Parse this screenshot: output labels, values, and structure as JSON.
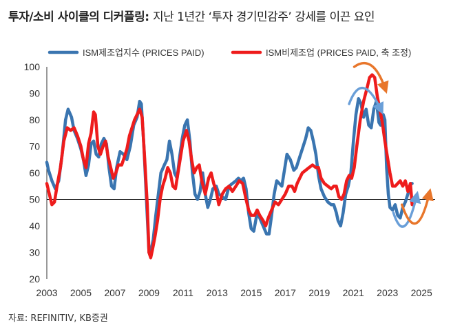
{
  "title_main": "투자/소비 사이클의 디커플링:",
  "title_sub": "지난 1년간 ‘투자 경기민감주’ 강세를 이끈 요인",
  "source": "자료: REFINITIV, KB증권",
  "colors": {
    "blue": "#3a75b0",
    "red": "#ee1c1c",
    "arrow_blue": "#6a9fd8",
    "arrow_orange": "#e8762b",
    "axis": "#333333"
  },
  "chart_data": {
    "type": "line",
    "title": "",
    "xlabel": "",
    "ylabel": "",
    "xlim": [
      2003,
      2025.8
    ],
    "ylim": [
      20,
      100
    ],
    "yticks": [
      20,
      30,
      40,
      50,
      60,
      70,
      80,
      90,
      100
    ],
    "xticks": [
      2003,
      2005,
      2007,
      2009,
      2011,
      2013,
      2015,
      2017,
      2019,
      2021,
      2023,
      2025
    ],
    "reference_line": 50,
    "legend_position": "top-left",
    "series": [
      {
        "name": "ISM제조업지수 (PRICES PAID)",
        "color": "blue",
        "points": [
          [
            2003.0,
            64
          ],
          [
            2003.1,
            61
          ],
          [
            2003.3,
            57
          ],
          [
            2003.5,
            54
          ],
          [
            2003.7,
            57
          ],
          [
            2003.9,
            67
          ],
          [
            2004.1,
            80
          ],
          [
            2004.25,
            84
          ],
          [
            2004.45,
            81
          ],
          [
            2004.6,
            76
          ],
          [
            2004.8,
            73
          ],
          [
            2005.0,
            69
          ],
          [
            2005.15,
            65
          ],
          [
            2005.3,
            59
          ],
          [
            2005.45,
            63
          ],
          [
            2005.6,
            71
          ],
          [
            2005.75,
            72
          ],
          [
            2005.9,
            67
          ],
          [
            2006.05,
            66
          ],
          [
            2006.2,
            71
          ],
          [
            2006.35,
            73
          ],
          [
            2006.5,
            71
          ],
          [
            2006.65,
            62
          ],
          [
            2006.8,
            55
          ],
          [
            2006.95,
            54
          ],
          [
            2007.1,
            62
          ],
          [
            2007.3,
            68
          ],
          [
            2007.5,
            67
          ],
          [
            2007.7,
            65
          ],
          [
            2007.9,
            70
          ],
          [
            2008.1,
            78
          ],
          [
            2008.3,
            81
          ],
          [
            2008.45,
            87
          ],
          [
            2008.55,
            86
          ],
          [
            2008.7,
            70
          ],
          [
            2008.85,
            50
          ],
          [
            2009.0,
            30
          ],
          [
            2009.1,
            30
          ],
          [
            2009.25,
            35
          ],
          [
            2009.4,
            44
          ],
          [
            2009.55,
            52
          ],
          [
            2009.7,
            60
          ],
          [
            2009.9,
            63
          ],
          [
            2010.05,
            65
          ],
          [
            2010.2,
            72
          ],
          [
            2010.35,
            67
          ],
          [
            2010.5,
            60
          ],
          [
            2010.65,
            58
          ],
          [
            2010.8,
            66
          ],
          [
            2010.95,
            73
          ],
          [
            2011.1,
            78
          ],
          [
            2011.25,
            80
          ],
          [
            2011.4,
            72
          ],
          [
            2011.55,
            60
          ],
          [
            2011.7,
            52
          ],
          [
            2011.85,
            50
          ],
          [
            2012.0,
            53
          ],
          [
            2012.15,
            60
          ],
          [
            2012.3,
            52
          ],
          [
            2012.45,
            47
          ],
          [
            2012.6,
            50
          ],
          [
            2012.75,
            54
          ],
          [
            2012.95,
            55
          ],
          [
            2013.1,
            52
          ],
          [
            2013.3,
            51
          ],
          [
            2013.5,
            50
          ],
          [
            2013.7,
            55
          ],
          [
            2013.9,
            56
          ],
          [
            2014.1,
            57
          ],
          [
            2014.25,
            58
          ],
          [
            2014.4,
            57
          ],
          [
            2014.55,
            58
          ],
          [
            2014.7,
            54
          ],
          [
            2014.85,
            45
          ],
          [
            2015.0,
            39
          ],
          [
            2015.15,
            38
          ],
          [
            2015.35,
            45
          ],
          [
            2015.5,
            43
          ],
          [
            2015.7,
            40
          ],
          [
            2015.9,
            37
          ],
          [
            2016.05,
            37
          ],
          [
            2016.2,
            44
          ],
          [
            2016.35,
            52
          ],
          [
            2016.5,
            57
          ],
          [
            2016.65,
            56
          ],
          [
            2016.8,
            55
          ],
          [
            2016.95,
            61
          ],
          [
            2017.1,
            67
          ],
          [
            2017.3,
            65
          ],
          [
            2017.5,
            61
          ],
          [
            2017.65,
            62
          ],
          [
            2017.85,
            66
          ],
          [
            2018.0,
            69
          ],
          [
            2018.2,
            73
          ],
          [
            2018.35,
            77
          ],
          [
            2018.5,
            76
          ],
          [
            2018.65,
            72
          ],
          [
            2018.8,
            67
          ],
          [
            2018.95,
            59
          ],
          [
            2019.1,
            54
          ],
          [
            2019.3,
            51
          ],
          [
            2019.5,
            49
          ],
          [
            2019.7,
            48
          ],
          [
            2019.85,
            48
          ],
          [
            2020.0,
            45
          ],
          [
            2020.1,
            42
          ],
          [
            2020.25,
            40
          ],
          [
            2020.4,
            45
          ],
          [
            2020.55,
            52
          ],
          [
            2020.7,
            55
          ],
          [
            2020.85,
            60
          ],
          [
            2021.0,
            72
          ],
          [
            2021.15,
            82
          ],
          [
            2021.3,
            88
          ],
          [
            2021.45,
            86
          ],
          [
            2021.6,
            81
          ],
          [
            2021.75,
            84
          ],
          [
            2021.9,
            78
          ],
          [
            2022.05,
            77
          ],
          [
            2022.2,
            84
          ],
          [
            2022.35,
            87
          ],
          [
            2022.5,
            79
          ],
          [
            2022.6,
            78
          ],
          [
            2022.75,
            82
          ],
          [
            2022.85,
            80
          ],
          [
            2022.95,
            62
          ],
          [
            2023.05,
            52
          ],
          [
            2023.15,
            47
          ],
          [
            2023.3,
            46
          ],
          [
            2023.45,
            48
          ],
          [
            2023.6,
            44
          ],
          [
            2023.75,
            43
          ],
          [
            2023.9,
            47
          ],
          [
            2024.05,
            49
          ],
          [
            2024.2,
            52
          ],
          [
            2024.35,
            56
          ],
          [
            2024.45,
            56
          ]
        ]
      },
      {
        "name": "ISM비제조업 (PRICES PAID, 축 조정)",
        "color": "red",
        "points": [
          [
            2003.0,
            56
          ],
          [
            2003.15,
            52
          ],
          [
            2003.3,
            48
          ],
          [
            2003.45,
            49
          ],
          [
            2003.6,
            55
          ],
          [
            2003.8,
            62
          ],
          [
            2004.0,
            72
          ],
          [
            2004.2,
            77
          ],
          [
            2004.4,
            76
          ],
          [
            2004.6,
            77
          ],
          [
            2004.8,
            74
          ],
          [
            2005.0,
            70
          ],
          [
            2005.15,
            65
          ],
          [
            2005.3,
            62
          ],
          [
            2005.45,
            71
          ],
          [
            2005.6,
            75
          ],
          [
            2005.75,
            83
          ],
          [
            2005.85,
            82
          ],
          [
            2006.0,
            70
          ],
          [
            2006.15,
            67
          ],
          [
            2006.3,
            70
          ],
          [
            2006.45,
            72
          ],
          [
            2006.6,
            66
          ],
          [
            2006.75,
            62
          ],
          [
            2006.9,
            58
          ],
          [
            2007.05,
            60
          ],
          [
            2007.2,
            63
          ],
          [
            2007.4,
            63
          ],
          [
            2007.55,
            66
          ],
          [
            2007.7,
            69
          ],
          [
            2007.85,
            74
          ],
          [
            2008.0,
            77
          ],
          [
            2008.15,
            80
          ],
          [
            2008.3,
            82
          ],
          [
            2008.45,
            84
          ],
          [
            2008.6,
            81
          ],
          [
            2008.75,
            65
          ],
          [
            2008.9,
            48
          ],
          [
            2009.0,
            30
          ],
          [
            2009.1,
            28
          ],
          [
            2009.2,
            31
          ],
          [
            2009.35,
            36
          ],
          [
            2009.5,
            42
          ],
          [
            2009.65,
            50
          ],
          [
            2009.8,
            55
          ],
          [
            2009.95,
            58
          ],
          [
            2010.1,
            62
          ],
          [
            2010.25,
            60
          ],
          [
            2010.4,
            55
          ],
          [
            2010.55,
            54
          ],
          [
            2010.7,
            60
          ],
          [
            2010.85,
            66
          ],
          [
            2011.0,
            72
          ],
          [
            2011.2,
            76
          ],
          [
            2011.35,
            72
          ],
          [
            2011.5,
            65
          ],
          [
            2011.65,
            60
          ],
          [
            2011.8,
            62
          ],
          [
            2011.95,
            63
          ],
          [
            2012.1,
            57
          ],
          [
            2012.3,
            52
          ],
          [
            2012.5,
            58
          ],
          [
            2012.65,
            60
          ],
          [
            2012.8,
            56
          ],
          [
            2012.95,
            53
          ],
          [
            2013.1,
            48
          ],
          [
            2013.3,
            52
          ],
          [
            2013.5,
            54
          ],
          [
            2013.7,
            55
          ],
          [
            2013.9,
            53
          ],
          [
            2014.1,
            55
          ],
          [
            2014.3,
            57
          ],
          [
            2014.5,
            56
          ],
          [
            2014.7,
            50
          ],
          [
            2014.85,
            46
          ],
          [
            2015.0,
            44
          ],
          [
            2015.2,
            44
          ],
          [
            2015.35,
            46
          ],
          [
            2015.5,
            44
          ],
          [
            2015.7,
            42
          ],
          [
            2015.85,
            40
          ],
          [
            2016.0,
            43
          ],
          [
            2016.2,
            46
          ],
          [
            2016.4,
            49
          ],
          [
            2016.6,
            48
          ],
          [
            2016.8,
            50
          ],
          [
            2017.0,
            52
          ],
          [
            2017.2,
            55
          ],
          [
            2017.4,
            55
          ],
          [
            2017.55,
            53
          ],
          [
            2017.7,
            56
          ],
          [
            2017.85,
            58
          ],
          [
            2018.0,
            60
          ],
          [
            2018.2,
            61
          ],
          [
            2018.4,
            62
          ],
          [
            2018.6,
            63
          ],
          [
            2018.8,
            62
          ],
          [
            2018.95,
            62
          ],
          [
            2019.1,
            58
          ],
          [
            2019.3,
            56
          ],
          [
            2019.5,
            55
          ],
          [
            2019.7,
            54
          ],
          [
            2019.85,
            55
          ],
          [
            2020.0,
            55
          ],
          [
            2020.15,
            51
          ],
          [
            2020.3,
            50
          ],
          [
            2020.45,
            52
          ],
          [
            2020.6,
            57
          ],
          [
            2020.75,
            59
          ],
          [
            2020.9,
            58
          ],
          [
            2021.05,
            62
          ],
          [
            2021.2,
            70
          ],
          [
            2021.4,
            80
          ],
          [
            2021.6,
            87
          ],
          [
            2021.8,
            92
          ],
          [
            2021.95,
            96
          ],
          [
            2022.1,
            97
          ],
          [
            2022.25,
            96
          ],
          [
            2022.4,
            89
          ],
          [
            2022.55,
            84
          ],
          [
            2022.7,
            79
          ],
          [
            2022.85,
            72
          ],
          [
            2023.0,
            66
          ],
          [
            2023.15,
            60
          ],
          [
            2023.3,
            55
          ],
          [
            2023.45,
            55
          ],
          [
            2023.6,
            56
          ],
          [
            2023.75,
            57
          ],
          [
            2023.9,
            55
          ],
          [
            2024.05,
            57
          ],
          [
            2024.2,
            53
          ],
          [
            2024.35,
            56
          ],
          [
            2024.45,
            48
          ]
        ]
      }
    ]
  }
}
